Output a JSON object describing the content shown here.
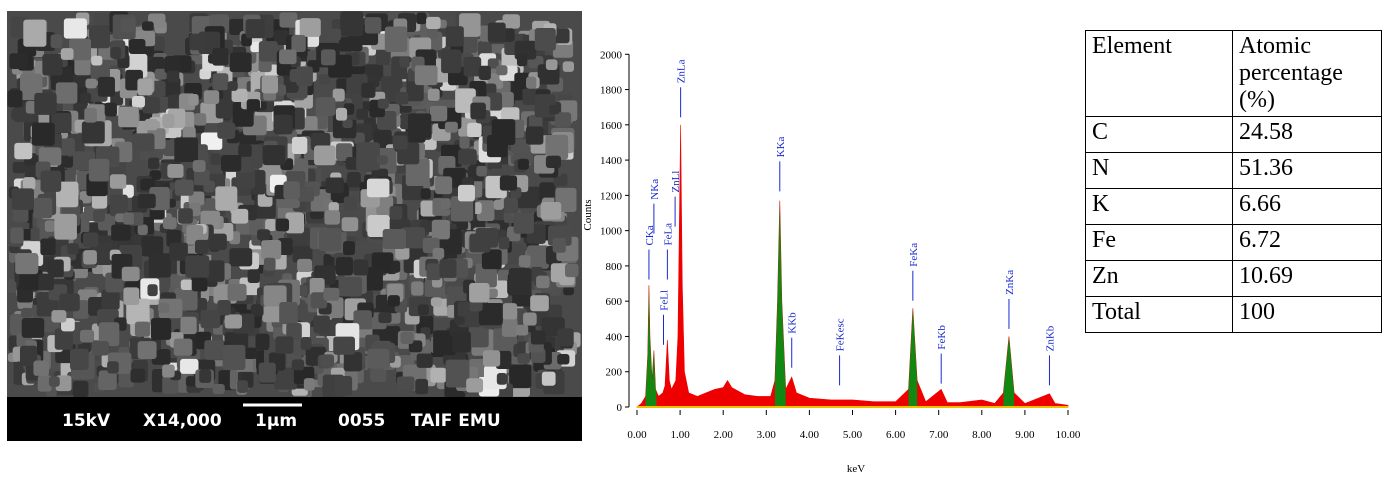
{
  "sem_image": {
    "voltage": "15kV",
    "magnification": "X14,000",
    "scale_bar": "1µm",
    "image_number": "0055",
    "lab": "TAIF EMU"
  },
  "chart_data": {
    "type": "area",
    "xlabel": "keV",
    "ylabel": "Counts",
    "color": "#ee0000",
    "highlight_color": "#118811",
    "baseline_color": "#f0c000",
    "annotation_color": "#1a2bd0",
    "x": [
      0,
      0.1,
      0.2,
      0.25,
      0.277,
      0.3,
      0.35,
      0.392,
      0.43,
      0.5,
      0.6,
      0.65,
      0.705,
      0.75,
      0.8,
      0.9,
      0.95,
      1.012,
      1.05,
      1.1,
      1.2,
      1.4,
      1.6,
      1.8,
      2.0,
      2.1,
      2.2,
      2.5,
      2.8,
      3.1,
      3.2,
      3.26,
      3.313,
      3.36,
      3.45,
      3.59,
      3.7,
      4.0,
      4.5,
      5.0,
      5.5,
      6.0,
      6.3,
      6.4,
      6.5,
      6.7,
      7.058,
      7.2,
      7.5,
      8.0,
      8.3,
      8.5,
      8.63,
      8.75,
      9.0,
      9.57,
      9.7,
      10.0
    ],
    "values": [
      0,
      20,
      60,
      300,
      690,
      400,
      150,
      320,
      100,
      60,
      80,
      120,
      380,
      150,
      100,
      150,
      400,
      1600,
      700,
      200,
      80,
      60,
      80,
      100,
      110,
      150,
      110,
      70,
      60,
      60,
      150,
      600,
      1170,
      600,
      100,
      170,
      80,
      50,
      40,
      40,
      30,
      30,
      100,
      560,
      150,
      30,
      100,
      25,
      25,
      40,
      20,
      80,
      400,
      80,
      20,
      75,
      20,
      10
    ],
    "highlight_ranges": [
      [
        0.2,
        0.45
      ],
      [
        3.2,
        3.45
      ],
      [
        6.3,
        6.5
      ],
      [
        8.5,
        8.75
      ]
    ],
    "annotations": [
      {
        "label": "CKa",
        "x": 0.277,
        "y": 700
      },
      {
        "label": "NKa",
        "x": 0.392,
        "y": 960
      },
      {
        "label": "FeLl",
        "x": 0.615,
        "y": 330
      },
      {
        "label": "FeLa",
        "x": 0.705,
        "y": 700
      },
      {
        "label": "ZnLl",
        "x": 0.884,
        "y": 1000
      },
      {
        "label": "ZnLa",
        "x": 1.012,
        "y": 1620
      },
      {
        "label": "KKa",
        "x": 3.313,
        "y": 1200
      },
      {
        "label": "KKb",
        "x": 3.59,
        "y": 200
      },
      {
        "label": "FeKesc",
        "x": 4.7,
        "y": 100
      },
      {
        "label": "FeKa",
        "x": 6.4,
        "y": 580
      },
      {
        "label": "FeKb",
        "x": 7.058,
        "y": 110
      },
      {
        "label": "ZnKa",
        "x": 8.63,
        "y": 420
      },
      {
        "label": "ZnKb",
        "x": 9.57,
        "y": 100
      }
    ],
    "xlim": [
      0,
      10
    ],
    "ylim": [
      0,
      2200
    ],
    "xticks": [
      {
        "value": 0,
        "label": "0.00"
      },
      {
        "value": 1,
        "label": "1.00"
      },
      {
        "value": 2,
        "label": "2.00"
      },
      {
        "value": 3,
        "label": "3.00"
      },
      {
        "value": 4,
        "label": "4.00"
      },
      {
        "value": 5,
        "label": "5.00"
      },
      {
        "value": 6,
        "label": "6.00"
      },
      {
        "value": 7,
        "label": "7.00"
      },
      {
        "value": 8,
        "label": "8.00"
      },
      {
        "value": 9,
        "label": "9.00"
      },
      {
        "value": 10,
        "label": "10.00"
      }
    ],
    "yticks": [
      0,
      200,
      400,
      600,
      800,
      1000,
      1200,
      1400,
      1600,
      1800,
      2000
    ]
  },
  "table": {
    "header": [
      "Element",
      "Atomic percentage (%)"
    ],
    "rows": [
      [
        "C",
        24.58
      ],
      [
        "N",
        51.36
      ],
      [
        "K",
        6.66
      ],
      [
        "Fe",
        6.72
      ],
      [
        "Zn",
        10.69
      ],
      [
        "Total",
        100
      ]
    ]
  }
}
